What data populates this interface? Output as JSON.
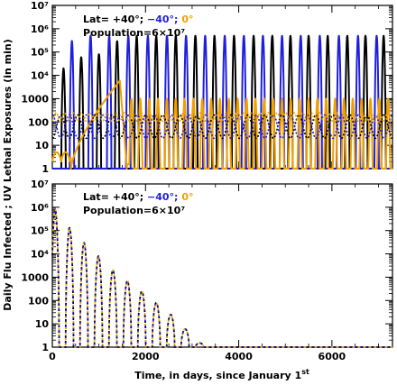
{
  "figure": {
    "ylabel": "Daily Flu Infected ; UV Lethal Exposures (in min)",
    "xlabel_main": "Time, in days, since January 1",
    "xlabel_sup": "st"
  },
  "chart_data": [
    {
      "panel": "top",
      "type": "line",
      "xlim": [
        0,
        7300
      ],
      "ylim": [
        1,
        10000000
      ],
      "yscale": "log",
      "xticks": [
        0,
        2000,
        4000,
        6000
      ],
      "yticks": [
        1,
        10,
        100,
        1000,
        10000,
        100000,
        1000000,
        10000000
      ],
      "ytick_labels": [
        "1",
        "10",
        "100",
        "1000",
        "10⁴",
        "10⁵",
        "10⁶",
        "10⁷"
      ],
      "legend": {
        "prefix": "Lat= ",
        "entries": [
          {
            "text": "+40°;",
            "color": "#000000"
          },
          {
            "text": " −40°;",
            "color": "#1f1fdc"
          },
          {
            "text": " 0°",
            "color": "#f0a000"
          }
        ],
        "population": "Population=6×10⁷"
      },
      "series": [
        {
          "color": "#000000",
          "kind": "flu epidemic peaks (solid)",
          "peak_days": [
            240,
            620,
            1000,
            1390,
            1810,
            2230,
            2650,
            3070,
            3480,
            3900,
            4320,
            4720,
            5110,
            5500,
            5910,
            6330,
            6720,
            7110
          ],
          "peak_values": [
            20000,
            60000,
            80000,
            300000,
            500000,
            500000,
            500000,
            500000,
            500000,
            500000,
            500000,
            500000,
            500000,
            500000,
            500000,
            500000,
            500000,
            500000
          ],
          "peak_width_days": 95,
          "baseline": 1
        },
        {
          "color": "#1f1fdc",
          "kind": "flu epidemic peaks (solid)",
          "peak_days": [
            420,
            820,
            1220,
            1630,
            2050,
            2460,
            2870,
            3280,
            3700,
            4110,
            4520,
            4930,
            5330,
            5740,
            6150,
            6560,
            6960
          ],
          "peak_values": [
            300000,
            500000,
            500000,
            500000,
            500000,
            500000,
            500000,
            500000,
            500000,
            500000,
            500000,
            500000,
            500000,
            500000,
            500000,
            500000,
            500000
          ],
          "peak_width_days": 95,
          "baseline": 1
        },
        {
          "color": "#f0a000",
          "kind": "flu epidemic (solid)",
          "wave": {
            "start": 400,
            "peak_day": 1450,
            "peak_value": 6000,
            "end": 1600
          },
          "oscillation": {
            "start": 1650,
            "end": 7300,
            "period_days": 190,
            "high": 1000,
            "low": 1
          }
        },
        {
          "color": "#000000",
          "kind": "UV lethal exposure (dotted)",
          "period_days": 365,
          "phase_peak_day": 182,
          "high": 200,
          "low": 20
        },
        {
          "color": "#1f1fdc",
          "kind": "UV lethal exposure (dotted)",
          "period_days": 365,
          "phase_peak_day": 0,
          "high": 200,
          "low": 20
        },
        {
          "color": "#f0a000",
          "kind": "UV lethal exposure (dotted)",
          "period_days": 182.5,
          "phase_peak_day": 80,
          "high": 250,
          "low": 110
        }
      ]
    },
    {
      "panel": "bottom",
      "type": "line",
      "xlim": [
        0,
        7300
      ],
      "ylim": [
        1,
        10000000
      ],
      "yscale": "log",
      "xticks": [
        0,
        2000,
        4000,
        6000
      ],
      "xtick_labels": [
        "0",
        "2000",
        "4000",
        "6000"
      ],
      "yticks": [
        1,
        10,
        100,
        1000,
        10000,
        100000,
        1000000,
        10000000
      ],
      "ytick_labels": [
        "1",
        "10",
        "100",
        "1000",
        "10⁴",
        "10⁵",
        "10⁶",
        "10⁷"
      ],
      "legend": {
        "prefix": "Lat= ",
        "entries": [
          {
            "text": "+40°;",
            "color": "#000000"
          },
          {
            "text": " −40°;",
            "color": "#1f1fdc"
          },
          {
            "text": " 0°",
            "color": "#f0a000"
          }
        ],
        "population": "Population=6×10⁷"
      },
      "series": [
        {
          "color": "#000000",
          "kind": "daily flu infected (dotted overlay)",
          "peak_days": [
            60,
            370,
            680,
            990,
            1300,
            1610,
            1920,
            2230,
            2540,
            2850,
            3160
          ],
          "peak_values": [
            800000,
            130000,
            30000,
            8000,
            2000,
            700,
            250,
            80,
            25,
            6,
            1.5
          ],
          "half_width_days": 85
        },
        {
          "color": "#1f1fdc",
          "kind": "daily flu infected (dotted overlay)",
          "peak_days": [
            60,
            370,
            680,
            990,
            1300,
            1610,
            1920,
            2230,
            2540,
            2850,
            3160
          ],
          "peak_values": [
            800000,
            130000,
            30000,
            8000,
            2000,
            700,
            250,
            80,
            25,
            6,
            1.5
          ],
          "half_width_days": 85
        },
        {
          "color": "#f0a000",
          "kind": "daily flu infected (dotted overlay)",
          "peak_days": [
            60,
            370,
            680,
            990,
            1300,
            1610,
            1920,
            2230,
            2540,
            2850,
            3160
          ],
          "peak_values": [
            800000,
            130000,
            30000,
            8000,
            2000,
            700,
            250,
            80,
            25,
            6,
            1.5
          ],
          "half_width_days": 85
        }
      ]
    }
  ]
}
